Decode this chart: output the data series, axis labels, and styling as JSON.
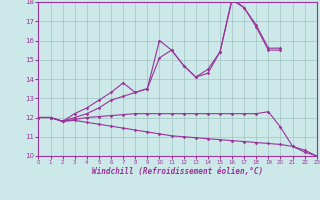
{
  "xlabel": "Windchill (Refroidissement éolien,°C)",
  "xlim": [
    0,
    23
  ],
  "ylim": [
    10,
    18
  ],
  "xticks": [
    0,
    1,
    2,
    3,
    4,
    5,
    6,
    7,
    8,
    9,
    10,
    11,
    12,
    13,
    14,
    15,
    16,
    17,
    18,
    19,
    20,
    21,
    22,
    23
  ],
  "yticks": [
    10,
    11,
    12,
    13,
    14,
    15,
    16,
    17,
    18
  ],
  "bg_color": "#cce8e8",
  "line_color": "#993399",
  "grid_color": "#99bbbb",
  "series": [
    {
      "x": [
        0,
        1,
        2,
        3,
        4,
        5,
        6,
        7,
        8,
        9,
        10,
        11,
        12,
        13,
        14,
        15,
        16,
        17,
        18,
        19,
        20
      ],
      "y": [
        12,
        12,
        11.8,
        12.2,
        12.5,
        12.9,
        13.3,
        13.8,
        13.3,
        13.5,
        16.0,
        15.5,
        14.7,
        14.1,
        14.5,
        15.4,
        18.2,
        17.7,
        16.8,
        15.6,
        15.6
      ]
    },
    {
      "x": [
        0,
        1,
        2,
        3,
        4,
        5,
        6,
        7,
        8,
        9,
        10,
        11,
        12,
        13,
        14,
        15,
        16,
        17,
        18,
        19,
        20
      ],
      "y": [
        12,
        12,
        11.8,
        12.0,
        12.2,
        12.5,
        12.9,
        13.1,
        13.3,
        13.5,
        15.1,
        15.5,
        14.7,
        14.1,
        14.3,
        15.4,
        18.1,
        17.7,
        16.7,
        15.5,
        15.5
      ]
    },
    {
      "x": [
        0,
        1,
        2,
        3,
        4,
        5,
        6,
        7,
        8,
        9,
        10,
        11,
        12,
        13,
        14,
        15,
        16,
        17,
        18,
        19,
        20,
        21,
        22,
        23
      ],
      "y": [
        12,
        12,
        11.8,
        11.9,
        12.0,
        12.05,
        12.1,
        12.15,
        12.2,
        12.2,
        12.2,
        12.2,
        12.2,
        12.2,
        12.2,
        12.2,
        12.2,
        12.2,
        12.2,
        12.3,
        11.5,
        10.5,
        10.2,
        10.0
      ]
    },
    {
      "x": [
        0,
        1,
        2,
        3,
        4,
        5,
        6,
        7,
        8,
        9,
        10,
        11,
        12,
        13,
        14,
        15,
        16,
        17,
        18,
        19,
        20,
        21,
        22,
        23
      ],
      "y": [
        12,
        12,
        11.8,
        11.85,
        11.75,
        11.65,
        11.55,
        11.45,
        11.35,
        11.25,
        11.15,
        11.05,
        11.0,
        10.95,
        10.9,
        10.85,
        10.8,
        10.75,
        10.7,
        10.65,
        10.6,
        10.5,
        10.3,
        10.0
      ]
    }
  ]
}
